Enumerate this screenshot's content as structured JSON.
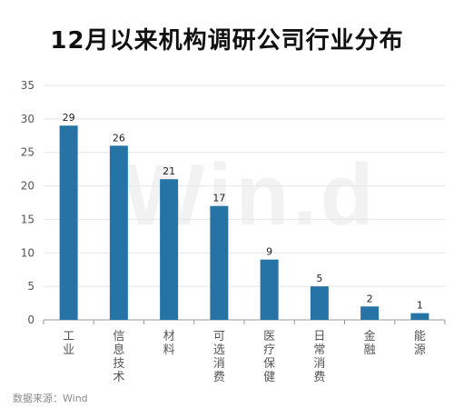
{
  "title": "12月以来机构调研公司行业分布",
  "source": "数据来源：Wind",
  "watermark": "Win.d",
  "colors": {
    "bar": "#2574a5",
    "grid": "#e6e6e6",
    "axis": "#555555",
    "text": "#222222"
  },
  "chart_data": {
    "type": "bar",
    "categories": [
      "工业",
      "信息技术",
      "材料",
      "可选消费",
      "医疗保健",
      "日常消费",
      "金融",
      "能源"
    ],
    "values": [
      29,
      26,
      21,
      17,
      9,
      5,
      2,
      1
    ],
    "ylim": [
      0,
      35
    ],
    "yticks": [
      0,
      5,
      10,
      15,
      20,
      25,
      30,
      35
    ],
    "grid": true,
    "legend": "none",
    "data_labels": true,
    "category_label_orientation": "vertical"
  }
}
